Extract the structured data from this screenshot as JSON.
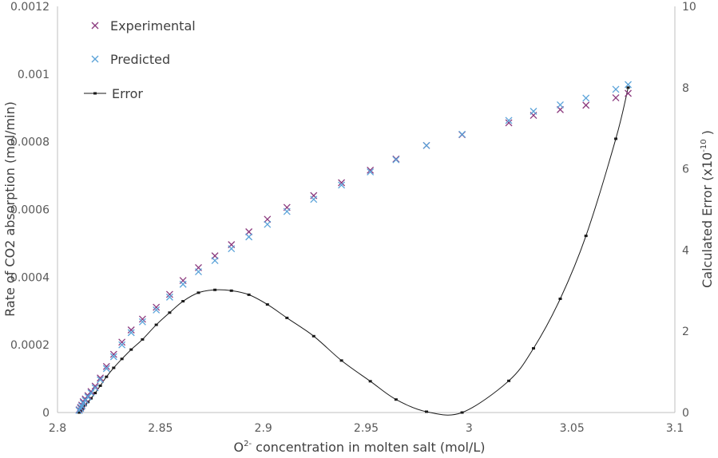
{
  "chart_data": {
    "type": "scatter",
    "title": "",
    "xlabel_parts": {
      "prefix": "O",
      "superscript": "2-",
      "suffix": " concentration in molten salt (mol/L)"
    },
    "ylabel": "Rate of CO2 absorption (mol/min)",
    "y2label_parts": {
      "prefix": "Calculated Error (x10",
      "superscript": "-10",
      "suffix": " )"
    },
    "xlim": [
      2.8,
      3.1
    ],
    "ylim": [
      0,
      0.0012
    ],
    "y2lim": [
      0,
      10
    ],
    "x_ticks": [
      "2.8",
      "2.85",
      "2.9",
      "2.95",
      "3",
      "3.05",
      "3.1"
    ],
    "y_ticks": [
      "0",
      "0.0002",
      "0.0004",
      "0.0006",
      "0.0008",
      "0.001",
      "0.0012"
    ],
    "y2_ticks": [
      "0",
      "2",
      "4",
      "6",
      "8",
      "10"
    ],
    "grid": false,
    "legend_position": "top-left",
    "series": [
      {
        "name": "Experimental",
        "axis": "left",
        "marker": "x",
        "color": "#8B3A7E",
        "x": [
          2.8105,
          2.8112,
          2.8118,
          2.8125,
          2.8135,
          2.8148,
          2.8163,
          2.8183,
          2.8208,
          2.8238,
          2.8273,
          2.8313,
          2.8358,
          2.8413,
          2.848,
          2.8545,
          2.861,
          2.8685,
          2.8765,
          2.8845,
          2.893,
          2.902,
          2.9115,
          2.9245,
          2.938,
          2.952,
          2.9645,
          2.9793,
          2.9966,
          3.0193,
          3.0313,
          3.0443,
          3.0568,
          3.0713,
          3.0773
        ],
        "y": [
          8e-06,
          1.5e-05,
          2.2e-05,
          3.2e-05,
          4e-05,
          5e-05,
          6.2e-05,
          7.8e-05,
          0.000102,
          0.000136,
          0.000172,
          0.000208,
          0.000244,
          0.000276,
          0.000311,
          0.000349,
          0.00039,
          0.000428,
          0.000463,
          0.000496,
          0.000534,
          0.000571,
          0.000606,
          0.000641,
          0.000679,
          0.000716,
          0.000749,
          0.000789,
          0.000821,
          0.000856,
          0.000878,
          0.000895,
          0.000908,
          0.00093,
          0.000943
        ]
      },
      {
        "name": "Predicted",
        "axis": "left",
        "marker": "x",
        "color": "#5BA3D9",
        "x": [
          2.8105,
          2.8112,
          2.8118,
          2.8125,
          2.8135,
          2.8148,
          2.8163,
          2.8183,
          2.8208,
          2.8238,
          2.8273,
          2.8313,
          2.8358,
          2.8413,
          2.848,
          2.8545,
          2.861,
          2.8685,
          2.8765,
          2.8845,
          2.893,
          2.902,
          2.9115,
          2.9245,
          2.938,
          2.952,
          2.9645,
          2.9793,
          2.9966,
          3.0193,
          3.0313,
          3.0443,
          3.0568,
          3.0713,
          3.0773
        ],
        "y": [
          6e-06,
          1.2e-05,
          1.9e-05,
          2.8e-05,
          3.6e-05,
          4.6e-05,
          5.8e-05,
          7.3e-05,
          9.7e-05,
          0.00013,
          0.000165,
          0.0002,
          0.000236,
          0.000268,
          0.000303,
          0.000341,
          0.000379,
          0.000416,
          0.000449,
          0.000484,
          0.000519,
          0.000556,
          0.000594,
          0.00063,
          0.000672,
          0.000711,
          0.000747,
          0.000789,
          0.000822,
          0.000863,
          0.00089,
          0.000909,
          0.000929,
          0.000955,
          0.000969
        ]
      },
      {
        "name": "Error",
        "axis": "right",
        "marker": "dash-line",
        "color": "#1a1a1a",
        "x": [
          2.8105,
          2.8112,
          2.8118,
          2.8125,
          2.8135,
          2.8148,
          2.8163,
          2.8183,
          2.8208,
          2.8238,
          2.8273,
          2.8313,
          2.8358,
          2.8413,
          2.848,
          2.8545,
          2.861,
          2.8685,
          2.8765,
          2.8845,
          2.893,
          2.902,
          2.9115,
          2.9245,
          2.938,
          2.952,
          2.9645,
          2.9793,
          2.9966,
          3.0193,
          3.0313,
          3.0443,
          3.0568,
          3.0713,
          3.0773
        ],
        "y": [
          0.0,
          0.03,
          0.06,
          0.1,
          0.18,
          0.26,
          0.35,
          0.48,
          0.66,
          0.88,
          1.1,
          1.32,
          1.55,
          1.8,
          2.16,
          2.46,
          2.74,
          2.95,
          3.02,
          3.0,
          2.9,
          2.66,
          2.33,
          1.88,
          1.28,
          0.77,
          0.32,
          0.02,
          0.0,
          0.78,
          1.58,
          2.8,
          4.35,
          6.74,
          8.0
        ]
      }
    ]
  }
}
